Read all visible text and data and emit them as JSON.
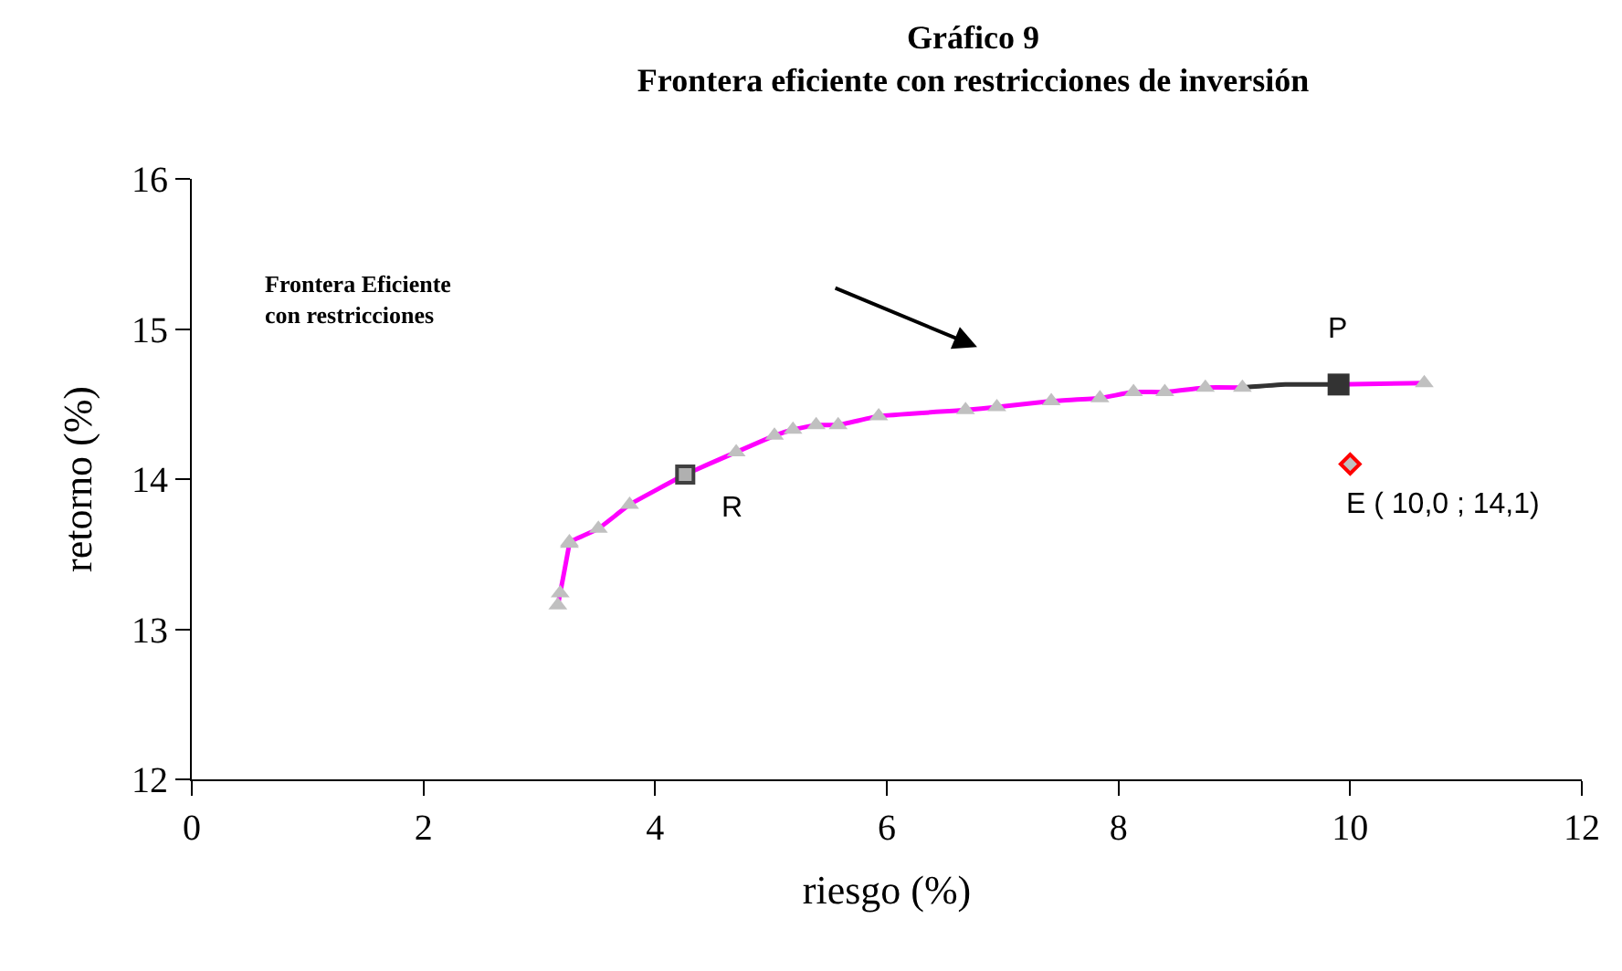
{
  "chart_data": {
    "type": "line",
    "title": "Gráfico 9\nFrontera eficiente con restricciones de inversión",
    "xlabel": "riesgo (%)",
    "ylabel": "retorno (%)",
    "xlim": [
      0,
      12
    ],
    "xticks": [
      0,
      2,
      4,
      6,
      8,
      10,
      12
    ],
    "ylim": [
      12,
      16
    ],
    "yticks": [
      12,
      13,
      14,
      15,
      16
    ],
    "series": [
      {
        "color": "#ff00ff",
        "marker": "none",
        "x": [
          3.16,
          3.18,
          3.26,
          3.26,
          3.51,
          3.78,
          4.26,
          4.7,
          5.03,
          5.19,
          5.39,
          5.58,
          5.93,
          6.68,
          6.95,
          7.42,
          7.84,
          8.13,
          8.4,
          8.75,
          9.07
        ],
        "values": [
          13.16,
          13.24,
          13.57,
          13.58,
          13.67,
          13.83,
          14.03,
          14.18,
          14.29,
          14.33,
          14.36,
          14.36,
          14.42,
          14.46,
          14.48,
          14.52,
          14.54,
          14.58,
          14.58,
          14.61,
          14.61
        ]
      },
      {
        "color": "#333333",
        "marker": "none",
        "x": [
          9.07,
          9.44,
          9.9
        ],
        "values": [
          14.61,
          14.63,
          14.63
        ]
      },
      {
        "color": "#ff00ff",
        "marker": "none",
        "x": [
          9.9,
          10.64
        ],
        "values": [
          14.63,
          14.64
        ]
      },
      {
        "type": "scatter",
        "color": "#c0c0c0",
        "marker": "triangle",
        "x": [
          3.16,
          3.18,
          3.26,
          3.26,
          3.51,
          3.78,
          4.7,
          5.03,
          5.19,
          5.39,
          5.58,
          5.93,
          6.68,
          6.95,
          7.42,
          7.84,
          8.13,
          8.4,
          8.75,
          9.07,
          10.64
        ],
        "values": [
          13.16,
          13.24,
          13.57,
          13.58,
          13.67,
          13.83,
          14.18,
          14.29,
          14.33,
          14.36,
          14.36,
          14.42,
          14.46,
          14.48,
          14.52,
          14.54,
          14.58,
          14.58,
          14.61,
          14.61,
          14.64
        ]
      },
      {
        "type": "scatter",
        "color": "#404040",
        "marker": "square",
        "x": [
          4.26
        ],
        "values": [
          14.03
        ]
      },
      {
        "type": "scatter",
        "color": "#333333",
        "marker": "square",
        "x": [
          9.9
        ],
        "values": [
          14.63
        ]
      },
      {
        "type": "scatter",
        "color": "#ff0000",
        "marker": "diamond",
        "x": [
          10.0
        ],
        "values": [
          14.1
        ]
      }
    ],
    "annotations": [
      "Frontera Eficiente\ncon restricciones",
      {
        "text": "R",
        "x": 4.26,
        "y": 14.03
      },
      {
        "text": "P",
        "x": 9.9,
        "y": 14.63
      },
      {
        "text": "E ( 10,0 ; 14,1)",
        "x": 10.0,
        "y": 14.1
      }
    ]
  }
}
